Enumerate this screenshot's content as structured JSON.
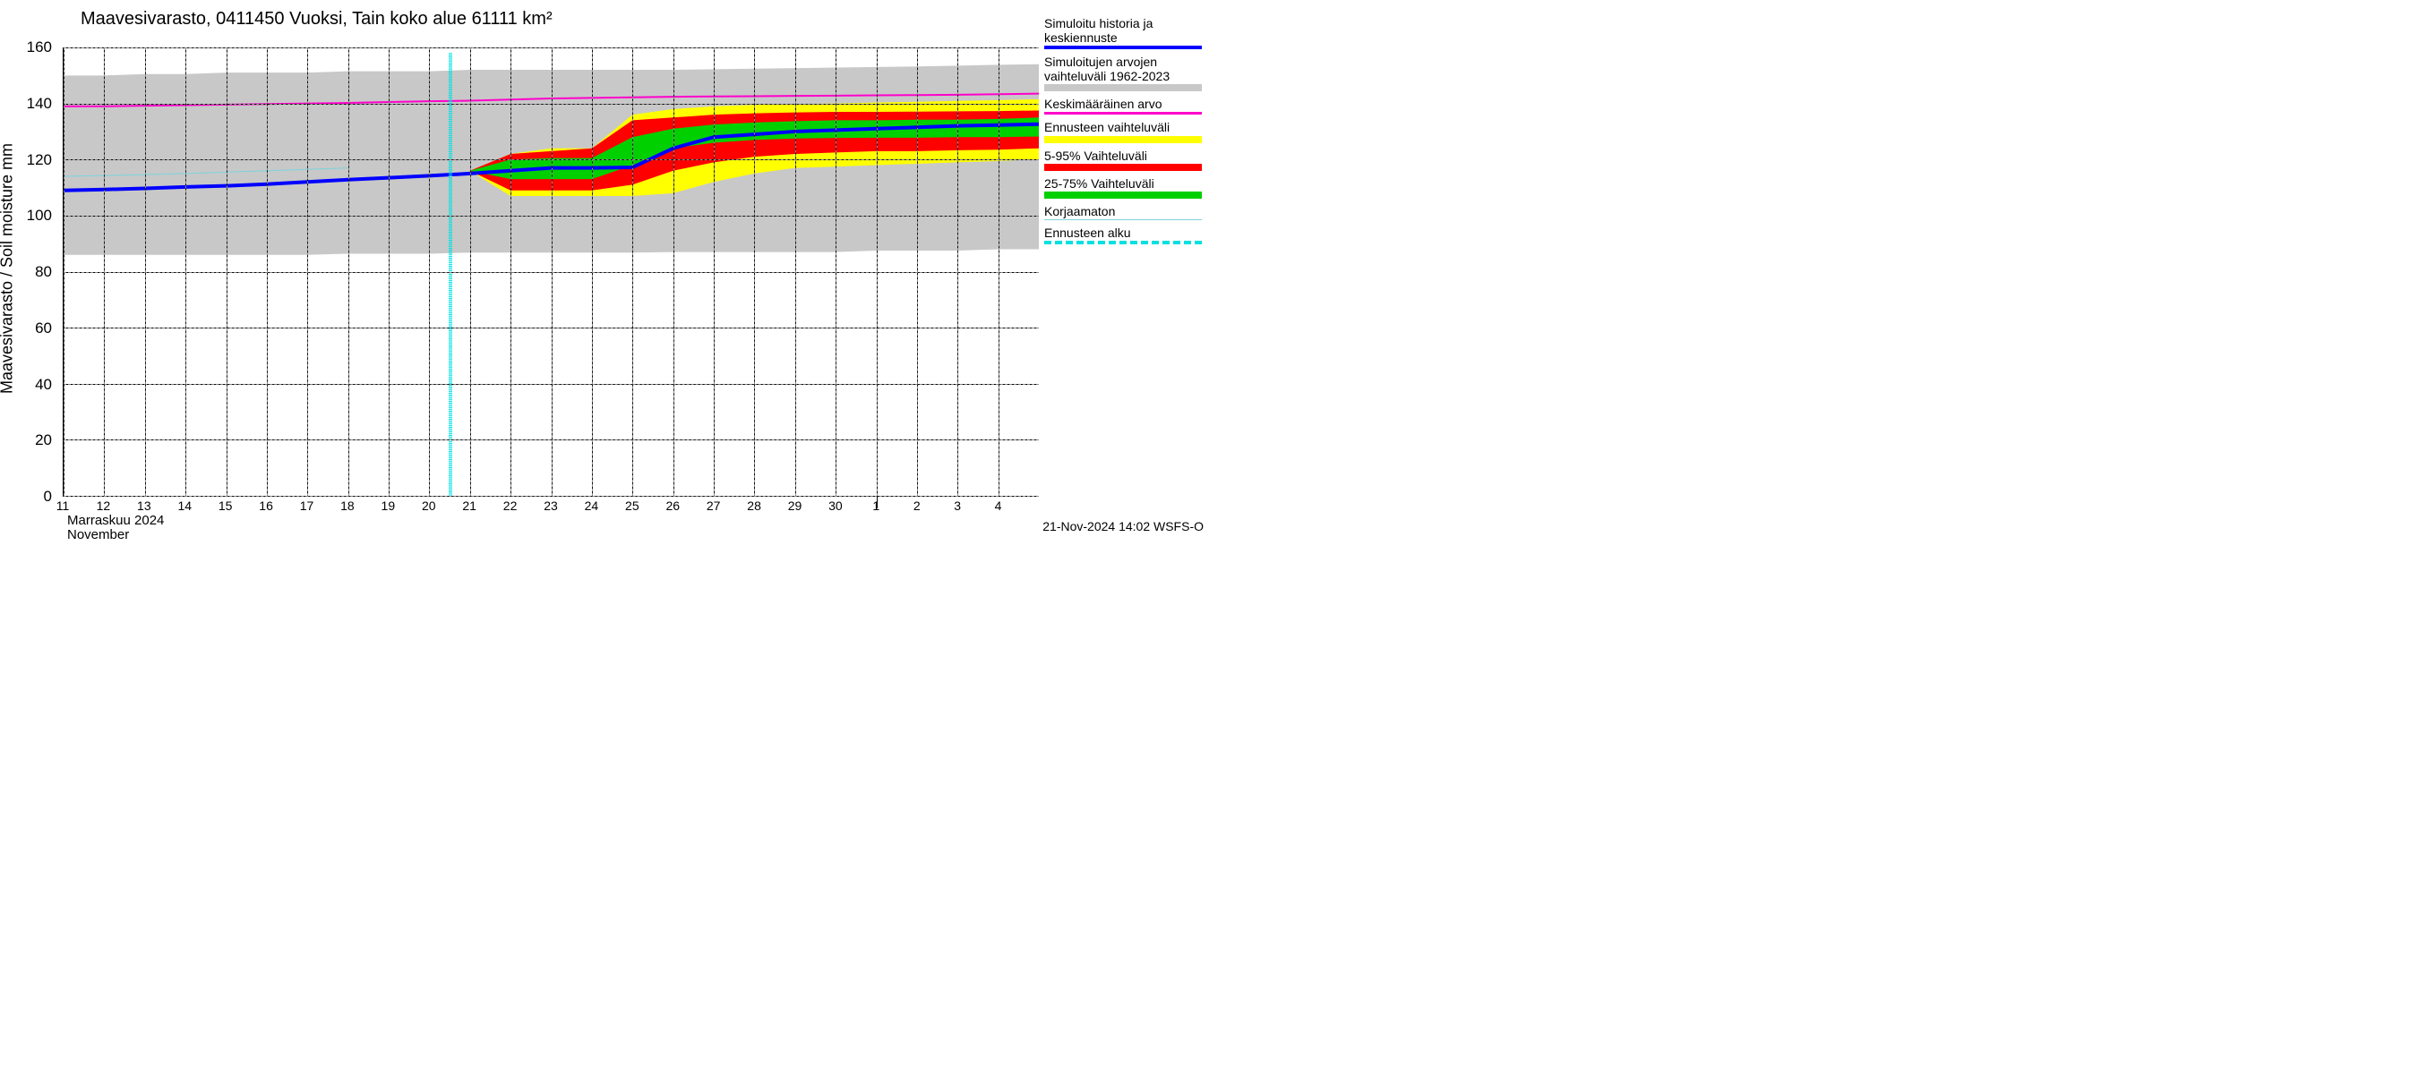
{
  "chart": {
    "title": "Maavesivarasto, 0411450 Vuoksi, Tain koko alue 61111 km²",
    "y_axis_label": "Maavesivarasto / Soil moisture   mm",
    "footer": "21-Nov-2024 14:02 WSFS-O",
    "ylim": [
      0,
      160
    ],
    "yticks": [
      0,
      20,
      40,
      60,
      80,
      100,
      120,
      140,
      160
    ],
    "background_color": "#ffffff",
    "grid_color": "#888888",
    "x_days": [
      11,
      12,
      13,
      14,
      15,
      16,
      17,
      18,
      19,
      20,
      21,
      22,
      23,
      24,
      25,
      26,
      27,
      28,
      29,
      30,
      1,
      2,
      3,
      4
    ],
    "x_count": 25,
    "month_label_fi": "Marraskuu 2024",
    "month_label_en": "November",
    "forecast_start_index": 10,
    "series": {
      "hist_band": {
        "color": "#c8c8c8",
        "upper": [
          150,
          150,
          150.5,
          150.5,
          151,
          151,
          151,
          151.5,
          151.5,
          151.5,
          152,
          152,
          152,
          152,
          152,
          152,
          152.2,
          152.4,
          152.6,
          152.8,
          153,
          153.2,
          153.5,
          153.8,
          154
        ],
        "lower": [
          86,
          86,
          86,
          86,
          86,
          86,
          86,
          86.4,
          86.4,
          86.4,
          86.8,
          86.8,
          86.8,
          86.8,
          86.8,
          87,
          87,
          87,
          87,
          87,
          87.5,
          87.5,
          87.5,
          88,
          88
        ]
      },
      "mean_hist": {
        "color": "#ff00cc",
        "width": 2,
        "values": [
          139,
          139,
          139.2,
          139.4,
          139.6,
          139.8,
          140,
          140.2,
          140.5,
          140.8,
          141,
          141.4,
          141.8,
          142,
          142.2,
          142.4,
          142.5,
          142.6,
          142.7,
          142.8,
          142.9,
          143,
          143.1,
          143.3,
          143.5
        ]
      },
      "uncorrected": {
        "color": "#7ad4dc",
        "width": 1,
        "values": [
          114,
          114.3,
          114.6,
          115,
          115.5,
          116,
          116.5,
          117,
          null,
          null,
          null,
          null,
          null,
          null,
          null,
          null,
          null,
          null,
          null,
          null,
          null,
          null,
          null,
          null,
          null
        ]
      },
      "main": {
        "color": "#0000ff",
        "width": 4,
        "values": [
          109,
          109.3,
          109.7,
          110.2,
          110.6,
          111.2,
          112,
          112.8,
          113.5,
          114.2,
          115,
          116,
          117,
          117,
          117.2,
          124,
          128,
          129,
          130,
          130.5,
          131,
          131.5,
          132,
          132.3,
          132.6
        ]
      },
      "band_yellow": {
        "color": "#ffff00",
        "upper": [
          null,
          null,
          null,
          null,
          null,
          null,
          null,
          null,
          null,
          null,
          116,
          122,
          124,
          124,
          136,
          138,
          139,
          139.5,
          139.8,
          140,
          140.3,
          140.6,
          140.9,
          141.2,
          141.5
        ],
        "lower": [
          null,
          null,
          null,
          null,
          null,
          null,
          null,
          null,
          null,
          null,
          116,
          107,
          107,
          107,
          107,
          108,
          112,
          115,
          117,
          117.5,
          118,
          118.5,
          119,
          119.5,
          120
        ]
      },
      "band_red": {
        "color": "#ff0000",
        "upper": [
          null,
          null,
          null,
          null,
          null,
          null,
          null,
          null,
          null,
          null,
          116,
          122,
          123,
          124,
          134,
          135,
          136,
          136.5,
          136.8,
          137,
          137,
          137.1,
          137.2,
          137.3,
          137.5
        ],
        "lower": [
          null,
          null,
          null,
          null,
          null,
          null,
          null,
          null,
          null,
          null,
          116,
          109,
          109,
          109,
          111,
          116,
          119,
          121,
          122,
          122.5,
          123,
          123,
          123.3,
          123.5,
          124
        ]
      },
      "band_green": {
        "color": "#00d000",
        "upper": [
          null,
          null,
          null,
          null,
          null,
          null,
          null,
          null,
          null,
          null,
          116,
          120,
          120.5,
          120.5,
          128,
          131,
          132.5,
          133.2,
          133.7,
          134,
          134,
          134.2,
          134.2,
          134.5,
          135
        ],
        "lower": [
          null,
          null,
          null,
          null,
          null,
          null,
          null,
          null,
          null,
          null,
          116,
          113,
          113,
          113,
          118,
          124,
          126,
          127,
          127.5,
          127.7,
          127.8,
          127.8,
          128,
          128,
          128.2
        ]
      },
      "forecast_line": {
        "color": "#00e0e0",
        "dash": true
      }
    }
  },
  "legend": [
    {
      "label": "Simuloitu historia ja keskiennuste",
      "color": "#0000ff",
      "style": "line",
      "h": 4
    },
    {
      "label": "Simuloitujen arvojen vaihteluväli 1962-2023",
      "color": "#c8c8c8",
      "style": "block",
      "h": 8
    },
    {
      "label": "Keskimääräinen arvo",
      "color": "#ff00cc",
      "style": "line",
      "h": 3
    },
    {
      "label": "Ennusteen vaihteluväli",
      "color": "#ffff00",
      "style": "block",
      "h": 8
    },
    {
      "label": "5-95% Vaihteluväli",
      "color": "#ff0000",
      "style": "block",
      "h": 8
    },
    {
      "label": "25-75% Vaihteluväli",
      "color": "#00d000",
      "style": "block",
      "h": 8
    },
    {
      "label": "Korjaamaton",
      "color": "#7ad4dc",
      "style": "thin",
      "h": 1.5
    },
    {
      "label": "Ennusteen alku",
      "color": "#00e0e0",
      "style": "dashed",
      "h": 4
    }
  ]
}
